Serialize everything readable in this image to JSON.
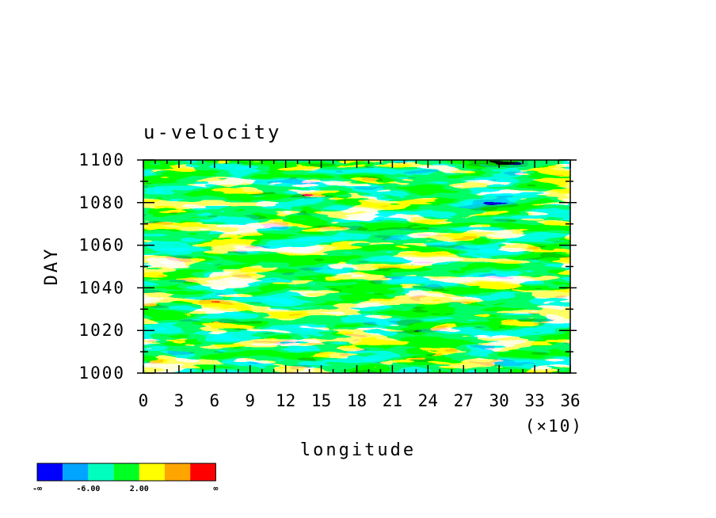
{
  "chart_data": {
    "type": "heatmap",
    "title": "u-velocity",
    "xlabel": "longitude",
    "ylabel": "DAY",
    "x_multiplier": "(×10)",
    "xlim": [
      0,
      36
    ],
    "ylim": [
      1000,
      1100
    ],
    "x_ticks": [
      "0",
      "3",
      "6",
      "9",
      "12",
      "15",
      "18",
      "21",
      "24",
      "27",
      "30",
      "33",
      "36"
    ],
    "y_ticks": [
      "1000",
      "1020",
      "1040",
      "1060",
      "1080",
      "1100"
    ],
    "grid": false,
    "colorbar": {
      "colors": [
        "#0000ff",
        "#00a5ff",
        "#00ffbe",
        "#00ff22",
        "#ffff00",
        "#ffa500",
        "#ff0000"
      ],
      "labels": [
        "-∞",
        "-6.00",
        "2.00",
        "∞"
      ]
    }
  }
}
